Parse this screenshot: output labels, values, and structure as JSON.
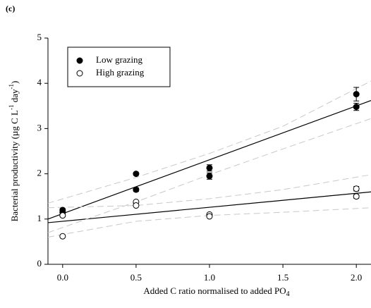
{
  "chart_data": {
    "type": "scatter",
    "panel_label": "(c)",
    "xlabel": [
      "Added C ratio normalised to added PO",
      "4"
    ],
    "ylabel": [
      "Bacterial productivity (µg C L",
      "-1",
      " day",
      "-1",
      ")"
    ],
    "xlim": [
      -0.1,
      2.1
    ],
    "ylim": [
      0,
      5
    ],
    "xticks": [
      {
        "value": 0,
        "label": "0.0"
      },
      {
        "value": 0.5,
        "label": "0.5"
      },
      {
        "value": 1,
        "label": "1.0"
      },
      {
        "value": 1.5,
        "label": "1.5"
      },
      {
        "value": 2,
        "label": "2.0"
      }
    ],
    "yticks": [
      0,
      1,
      2,
      3,
      4,
      5
    ],
    "legend": "upper left",
    "series": [
      {
        "name": "Low grazing",
        "color": "#000000",
        "marker": "filled",
        "x": [
          0,
          0,
          0.5,
          0.5,
          1,
          1,
          2,
          2
        ],
        "values": [
          1.2,
          1.15,
          2.0,
          1.65,
          2.13,
          1.95,
          3.76,
          3.48
        ],
        "errors": [
          0.03,
          0.03,
          null,
          0.04,
          0.07,
          0.07,
          0.15,
          0.08
        ]
      },
      {
        "name": "High grazing",
        "color": "#000000",
        "marker": "open",
        "x": [
          0,
          0,
          0.5,
          0.5,
          1,
          1,
          2,
          2
        ],
        "values": [
          1.08,
          0.62,
          1.38,
          1.3,
          1.1,
          1.06,
          1.67,
          1.5
        ],
        "errors": [
          0.03,
          null,
          null,
          null,
          null,
          null,
          0.05,
          0.04
        ]
      }
    ],
    "fits": [
      {
        "color": "#000000",
        "dashed": false,
        "x": [
          -0.1,
          2.1
        ],
        "values": [
          1.0,
          3.62
        ]
      },
      {
        "color": "#000000",
        "dashed": false,
        "x": [
          -0.1,
          2.1
        ],
        "values": [
          0.92,
          1.6
        ]
      },
      {
        "color": "#c8c8c8",
        "dashed": true,
        "x": [
          -0.1,
          0.5,
          1,
          1.5,
          2.1
        ],
        "values": [
          1.35,
          1.92,
          2.45,
          3.05,
          4.05
        ]
      },
      {
        "color": "#c8c8c8",
        "dashed": true,
        "x": [
          -0.1,
          0.5,
          1,
          1.5,
          2.1
        ],
        "values": [
          0.7,
          1.38,
          1.98,
          2.55,
          3.22
        ]
      },
      {
        "color": "#c8c8c8",
        "dashed": true,
        "x": [
          -0.1,
          0.5,
          1,
          1.5,
          2.1
        ],
        "values": [
          1.25,
          1.3,
          1.45,
          1.65,
          1.98
        ]
      },
      {
        "color": "#c8c8c8",
        "dashed": true,
        "x": [
          -0.1,
          0.5,
          1,
          1.5,
          2.1
        ],
        "values": [
          0.6,
          0.95,
          1.08,
          1.15,
          1.25
        ]
      }
    ]
  }
}
